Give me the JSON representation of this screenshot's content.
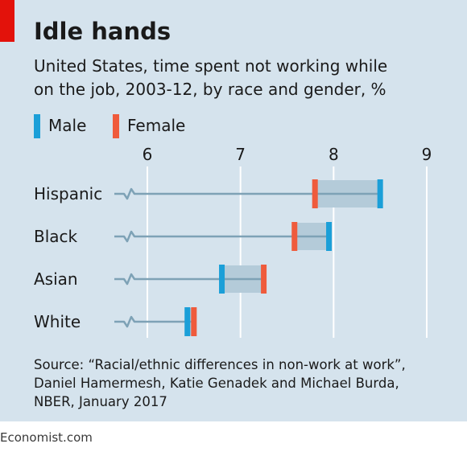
{
  "header": {
    "title": "Idle hands",
    "subtitle_lines": [
      "United States, time spent not working while",
      "on the job, 2003-12, by race and gender, %"
    ]
  },
  "footer": {
    "source_lines": [
      "Source: “Racial/ethnic differences in non-work at work”,",
      "Daniel Hamermesh, Katie Genadek and Michael Burda,",
      "NBER, January 2017"
    ],
    "brand": "Economist.com"
  },
  "colors": {
    "panel": "#d5e3ed",
    "male": "#1b9fd8",
    "female": "#ef5b3c",
    "line": "#7ea2b6",
    "range": "#b4cbd9",
    "grid": "#ffffff",
    "brand_red": "#e3120b"
  },
  "chart_data": {
    "type": "dumbbell",
    "title": "Idle hands",
    "subtitle": "United States, time spent not working while on the job, 2003-12, by race and gender, %",
    "x_ticks": [
      6,
      7,
      8,
      9
    ],
    "xlim": [
      6,
      9
    ],
    "axis_break": true,
    "grid": true,
    "legend": {
      "position": "top-left",
      "entries": [
        {
          "key": "male",
          "label": "Male"
        },
        {
          "key": "female",
          "label": "Female"
        }
      ]
    },
    "categories": [
      "Hispanic",
      "Black",
      "Asian",
      "White"
    ],
    "series": [
      {
        "name": "Male",
        "key": "male",
        "values": [
          8.5,
          7.95,
          6.8,
          6.43
        ]
      },
      {
        "name": "Female",
        "key": "female",
        "values": [
          7.8,
          7.58,
          7.25,
          6.5
        ]
      }
    ]
  }
}
